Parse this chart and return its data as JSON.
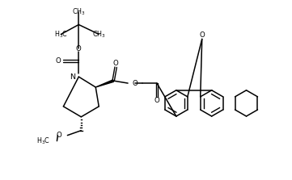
{
  "bg": "#ffffff",
  "lw": 1.1,
  "figsize": [
    3.61,
    2.23
  ],
  "dpi": 100,
  "xlim": [
    0,
    3.61
  ],
  "ylim": [
    0,
    2.23
  ]
}
